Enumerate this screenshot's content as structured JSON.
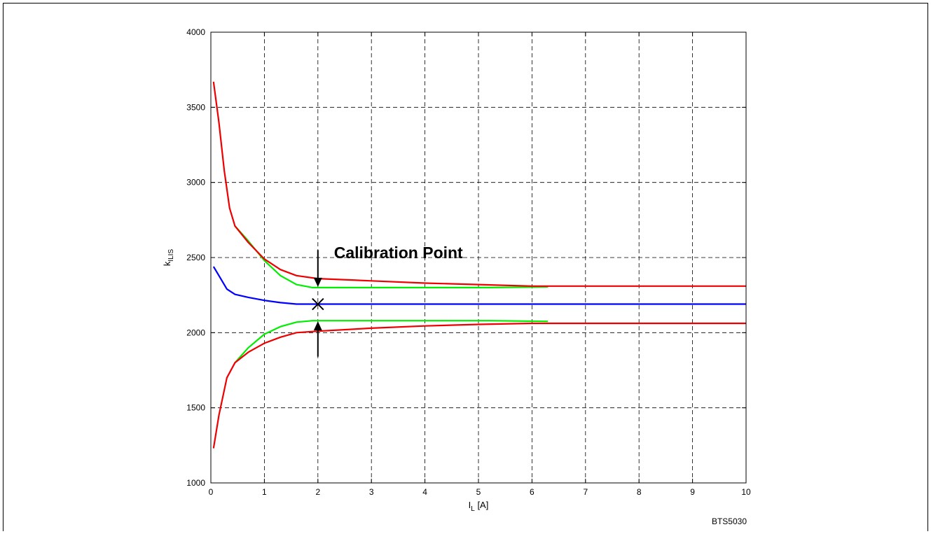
{
  "chart_data": {
    "type": "line",
    "title": "",
    "xlabel": {
      "main": "I",
      "sub": "L",
      "suffix": " [A]"
    },
    "ylabel": {
      "main": "k",
      "sub": "ILIS"
    },
    "xlim": [
      0,
      10
    ],
    "ylim": [
      1000,
      4000
    ],
    "xticks": [
      0,
      1,
      2,
      3,
      4,
      5,
      6,
      7,
      8,
      9,
      10
    ],
    "yticks": [
      1000,
      1500,
      2000,
      2500,
      3000,
      3500,
      4000
    ],
    "grid": true,
    "grid_style": "dashed",
    "series": [
      {
        "color": "#0000ff",
        "points": [
          [
            0.05,
            2440
          ],
          [
            0.15,
            2380
          ],
          [
            0.3,
            2290
          ],
          [
            0.45,
            2255
          ],
          [
            0.7,
            2235
          ],
          [
            1.0,
            2215
          ],
          [
            1.3,
            2200
          ],
          [
            1.6,
            2190
          ],
          [
            2.0,
            2190
          ],
          [
            10,
            2190
          ]
        ]
      },
      {
        "color": "#00ee00",
        "points": [
          [
            0.45,
            2710
          ],
          [
            0.7,
            2610
          ],
          [
            1.0,
            2480
          ],
          [
            1.3,
            2380
          ],
          [
            1.6,
            2320
          ],
          [
            1.9,
            2300
          ],
          [
            2.0,
            2300
          ],
          [
            5.2,
            2300
          ],
          [
            6.3,
            2305
          ]
        ]
      },
      {
        "color": "#00ee00",
        "points": [
          [
            0.45,
            1800
          ],
          [
            0.7,
            1900
          ],
          [
            1.0,
            1990
          ],
          [
            1.3,
            2040
          ],
          [
            1.6,
            2070
          ],
          [
            1.9,
            2080
          ],
          [
            5.2,
            2080
          ],
          [
            6.3,
            2075
          ]
        ]
      },
      {
        "color": "#ee0000",
        "points": [
          [
            0.05,
            3670
          ],
          [
            0.15,
            3400
          ],
          [
            0.25,
            3080
          ],
          [
            0.35,
            2830
          ],
          [
            0.45,
            2710
          ],
          [
            0.7,
            2600
          ],
          [
            1.0,
            2490
          ],
          [
            1.3,
            2420
          ],
          [
            1.6,
            2380
          ],
          [
            2.0,
            2360
          ],
          [
            3.0,
            2345
          ],
          [
            4.0,
            2330
          ],
          [
            5.0,
            2320
          ],
          [
            6.0,
            2310
          ],
          [
            10,
            2310
          ]
        ]
      },
      {
        "color": "#ee0000",
        "points": [
          [
            0.05,
            1230
          ],
          [
            0.15,
            1450
          ],
          [
            0.3,
            1700
          ],
          [
            0.45,
            1800
          ],
          [
            0.7,
            1870
          ],
          [
            1.0,
            1930
          ],
          [
            1.3,
            1970
          ],
          [
            1.6,
            2000
          ],
          [
            2.0,
            2010
          ],
          [
            3.0,
            2030
          ],
          [
            4.0,
            2045
          ],
          [
            5.0,
            2055
          ],
          [
            6.0,
            2062
          ],
          [
            10,
            2062
          ]
        ]
      }
    ],
    "annotations": {
      "label": "Calibration Point",
      "marker": {
        "x": 2.0,
        "y": 2190
      },
      "arrow_down": {
        "x": 2.0,
        "from_y": 2550,
        "to_y": 2300
      },
      "arrow_up": {
        "x": 2.0,
        "from_y": 1840,
        "to_y": 2080
      }
    },
    "identifier": "BTS5030"
  }
}
